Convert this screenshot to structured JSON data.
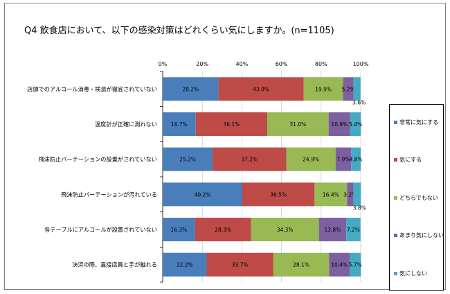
{
  "title": "Q4 飲食店において、以下の感染対策はどれくらい気にしますか。(n=1105)",
  "chart_data": {
    "type": "bar",
    "stacked": true,
    "orientation": "horizontal",
    "percent": true,
    "title": "Q4 飲食店において、以下の感染対策はどれくらい気にしますか。(n=1105)",
    "xlim": [
      0,
      100
    ],
    "x_ticks": [
      "0%",
      "20%",
      "40%",
      "60%",
      "80%",
      "100%"
    ],
    "grid": true,
    "legend_position": "right",
    "categories": [
      "店頭でのアルコール消毒・検温が徹底されていない",
      "温度計が正確に測れない",
      "飛沫防止パーテーションの設置がされていない",
      "飛沫防止パーテーションが汚れている",
      "各テーブルにアルコールが設置されていない",
      "決済の際、直接店員と手が触れる"
    ],
    "series": [
      {
        "name": "非常に気にする",
        "color": "#4a7ebb",
        "values": [
          28.2,
          16.7,
          25.2,
          40.2,
          16.3,
          22.2
        ],
        "labels": [
          "28.2%",
          "16.7%",
          "25.2%",
          "40.2%",
          "16.3%",
          "22.2%"
        ]
      },
      {
        "name": "気にする",
        "color": "#be4b48",
        "values": [
          43.0,
          36.1,
          37.2,
          36.5,
          28.3,
          33.7
        ],
        "labels": [
          "43.0%",
          "36.1%",
          "37.2%",
          "36.5%",
          "28.3%",
          "33.7%"
        ]
      },
      {
        "name": "どちらでもない",
        "color": "#98b954",
        "values": [
          19.9,
          31.0,
          24.9,
          16.4,
          34.3,
          28.1
        ],
        "labels": [
          "19.9%",
          "31.0%",
          "24.9%",
          "16.4%",
          "34.3%",
          "28.1%"
        ]
      },
      {
        "name": "あまり気にしない",
        "color": "#7d60a0",
        "values": [
          5.2,
          10.9,
          7.9,
          3.2,
          13.8,
          10.4
        ],
        "labels": [
          "5.2%",
          "10.9%",
          "7.9%",
          "3.2%",
          "13.8%",
          "10.4%"
        ]
      },
      {
        "name": "気にしない",
        "color": "#46aac5",
        "values": [
          3.6,
          5.4,
          4.8,
          3.8,
          7.2,
          5.7
        ],
        "labels": [
          "3.6%",
          "5.4%",
          "4.8%",
          "3.8%",
          "7.2%",
          "5.7%"
        ]
      }
    ]
  }
}
